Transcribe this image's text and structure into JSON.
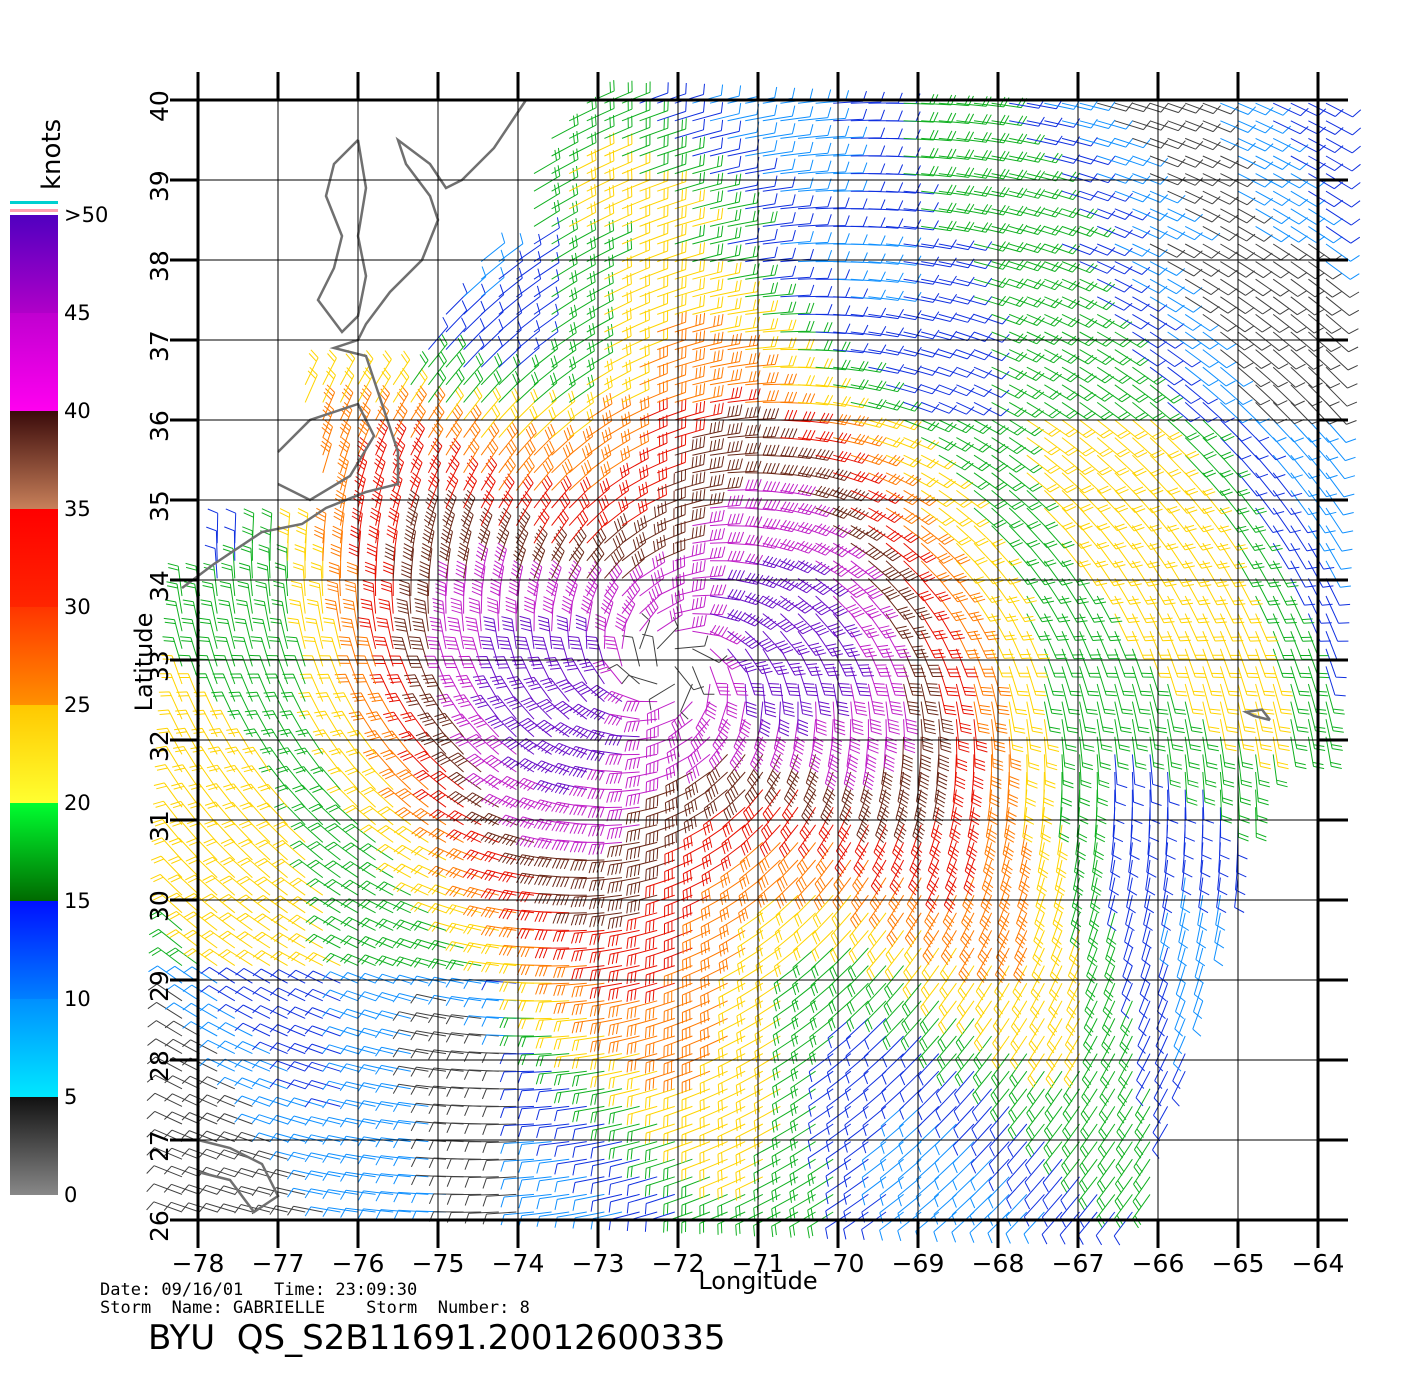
{
  "map": {
    "x_axis": {
      "label": "Longitude",
      "min": -78,
      "max": -64,
      "ticks": [
        "−78",
        "−77",
        "−76",
        "−75",
        "−74",
        "−73",
        "−72",
        "−71",
        "−70",
        "−69",
        "−68",
        "−67",
        "−66",
        "−65",
        "−64"
      ]
    },
    "y_axis": {
      "label": "Latitude",
      "min": 26,
      "max": 40,
      "ticks": [
        "26",
        "27",
        "28",
        "29",
        "30",
        "31",
        "32",
        "33",
        "34",
        "35",
        "36",
        "37",
        "38",
        "39",
        "40"
      ]
    },
    "storm_center": {
      "lon": -72.1,
      "lat": 32.9
    },
    "features": [
      "US east coast coastline",
      "Chesapeake Bay",
      "Delaware Bay",
      "Bermuda",
      "Bahamas (Abaco)"
    ]
  },
  "legend": {
    "unit": "knots",
    "bins": [
      {
        "label": "0",
        "from": 0,
        "to": 5,
        "colors": [
          "#888888",
          "#111111"
        ]
      },
      {
        "label": "5",
        "from": 5,
        "to": 10,
        "colors": [
          "#00e8ff",
          "#0090ff"
        ]
      },
      {
        "label": "10",
        "from": 10,
        "to": 15,
        "colors": [
          "#0080ff",
          "#0010ff"
        ]
      },
      {
        "label": "15",
        "from": 15,
        "to": 20,
        "colors": [
          "#006a00",
          "#00ff30"
        ]
      },
      {
        "label": "20",
        "from": 20,
        "to": 25,
        "colors": [
          "#ffff30",
          "#ffc800"
        ]
      },
      {
        "label": "25",
        "from": 25,
        "to": 30,
        "colors": [
          "#ff9000",
          "#ff3500"
        ]
      },
      {
        "label": "30",
        "from": 30,
        "to": 35,
        "colors": [
          "#ff2500",
          "#ff0000"
        ]
      },
      {
        "label": "35",
        "from": 35,
        "to": 40,
        "colors": [
          "#c8805a",
          "#3a0a0a"
        ]
      },
      {
        "label": "40",
        "from": 40,
        "to": 45,
        "colors": [
          "#ff00f0",
          "#c000d0"
        ]
      },
      {
        "label": "45",
        "from": 45,
        "to": 50,
        "colors": [
          "#b000c8",
          "#5000c0"
        ]
      },
      {
        "label": ">50",
        "from": 50,
        "to": 55,
        "colors": []
      }
    ],
    "overflow_stripe_colors": [
      "#00d0d0",
      "#ffffff",
      "#ff9fb0"
    ]
  },
  "info": {
    "line1": "Date: 09/16/01   Time: 23:09:30",
    "line2": "Storm  Name: GABRIELLE    Storm  Number: 8",
    "title": "BYU  QS_S2B11691.20012600335"
  }
}
